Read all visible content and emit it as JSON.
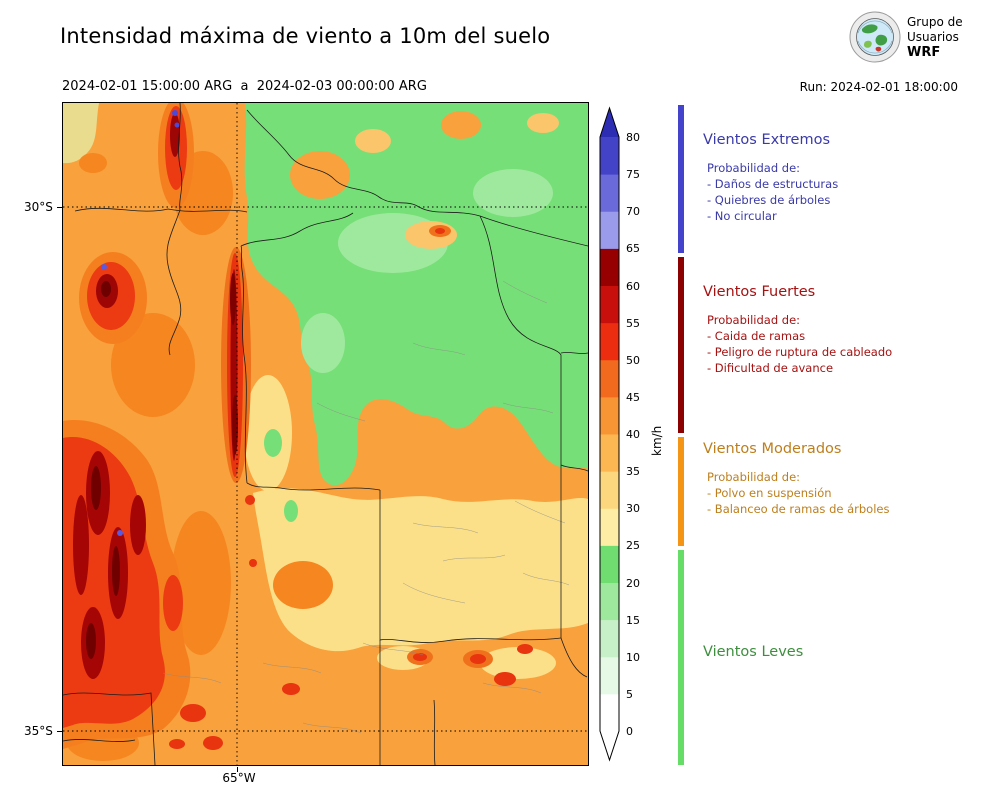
{
  "header": {
    "title": "Intensidad máxima de viento a 10m del suelo",
    "period": "2024-02-01 15:00:00 ARG  a  2024-02-03 00:00:00 ARG",
    "run": "Run: 2024-02-01 18:00:00",
    "logo": {
      "line1": "Grupo de",
      "line2": "Usuarios",
      "line3": "WRF"
    }
  },
  "map": {
    "lat_labels": [
      "30°S",
      "35°S"
    ],
    "lon_labels": [
      "65°W"
    ]
  },
  "colorbar": {
    "unit": "km/h",
    "tick_labels": [
      "0",
      "5",
      "10",
      "15",
      "20",
      "25",
      "30",
      "35",
      "40",
      "45",
      "50",
      "55",
      "60",
      "65",
      "70",
      "75",
      "80"
    ],
    "segment_colors": [
      "#FFFFFF",
      "#E6F8E6",
      "#C8F0C8",
      "#9EE89E",
      "#6FDD6F",
      "#FDEDA5",
      "#FDD77D",
      "#FCB652",
      "#F79534",
      "#F26A1E",
      "#EC2D0F",
      "#C90F0C",
      "#960000",
      "#9B9BEB",
      "#6A6ADA",
      "#4343C8"
    ],
    "under_color": "#FFFFFF",
    "over_color": "#2D2DB4"
  },
  "legend": {
    "sections": [
      {
        "title": "Vientos Extremos",
        "text_color": "#3A3AA8",
        "bar_color": "#4343CC",
        "items": [
          "Probabilidad de:",
          "- Daños de estructuras",
          "- Quiebres de árboles",
          "- No circular"
        ]
      },
      {
        "title": "Vientos Fuertes",
        "text_color": "#A51212",
        "bar_color": "#8B0000",
        "items": [
          "Probabilidad de:",
          "- Caida de ramas",
          "- Peligro de ruptura de cableado",
          "- Dificultad de avance"
        ]
      },
      {
        "title": "Vientos Moderados",
        "text_color": "#BD7F1E",
        "bar_color": "#F59516",
        "items": [
          "Probabilidad de:",
          "- Polvo en suspensión",
          "- Balanceo de ramas de árboles"
        ]
      },
      {
        "title": "Vientos Leves",
        "text_color": "#3E8E3E",
        "bar_color": "#66DD66",
        "items": []
      }
    ]
  },
  "chart_data": {
    "type": "heatmap",
    "title": "Intensidad máxima de viento a 10m del suelo",
    "unit": "km/h",
    "period_start": "2024-02-01 15:00:00 ARG",
    "period_end": "2024-02-03 00:00:00 ARG",
    "model_run": "Run: 2024-02-01 18:00:00",
    "colorbar_ticks": [
      0,
      5,
      10,
      15,
      20,
      25,
      30,
      35,
      40,
      45,
      50,
      55,
      60,
      65,
      70,
      75,
      80
    ],
    "colorbar_range": [
      0,
      80
    ],
    "lat_gridlines": [
      "30°S",
      "35°S"
    ],
    "lon_gridlines": [
      "65°W"
    ],
    "wind_categories": [
      {
        "label": "Vientos Extremos",
        "range_kmh": [
          65,
          80
        ]
      },
      {
        "label": "Vientos Fuertes",
        "range_kmh": [
          40,
          65
        ]
      },
      {
        "label": "Vientos Moderados",
        "range_kmh": [
          25,
          40
        ]
      },
      {
        "label": "Vientos Leves",
        "range_kmh": [
          0,
          25
        ]
      }
    ]
  }
}
